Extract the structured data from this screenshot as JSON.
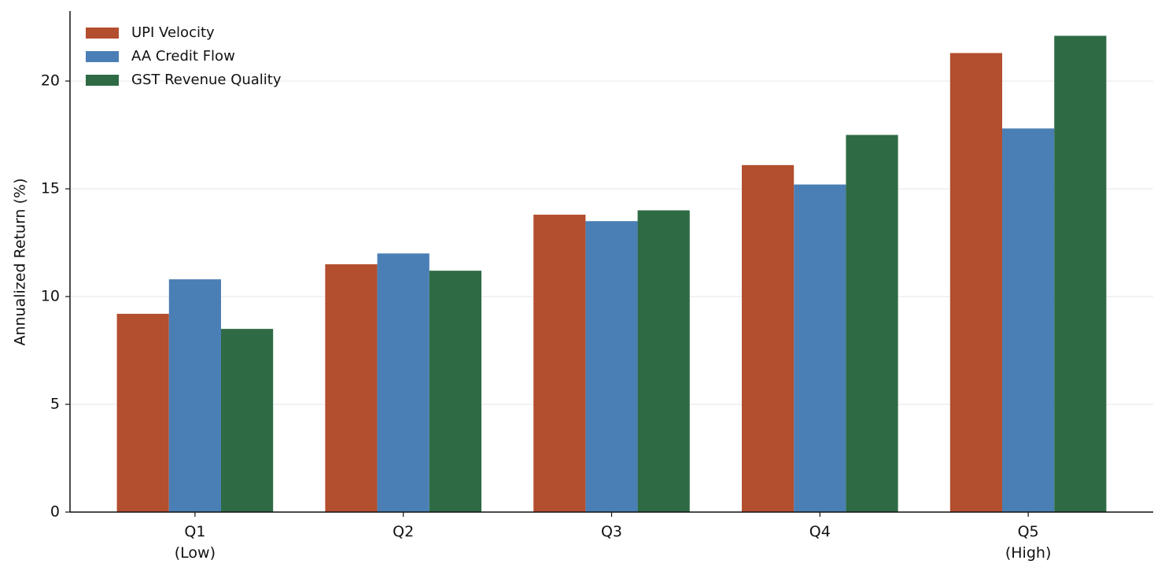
{
  "chart_data": {
    "type": "bar",
    "ylabel": "Annualized Return (%)",
    "categories": [
      "Q1\n(Low)",
      "Q2",
      "Q3",
      "Q4",
      "Q5\n(High)"
    ],
    "series": [
      {
        "name": "UPI Velocity",
        "color": "#b34e2e",
        "values": [
          9.2,
          11.5,
          13.8,
          16.1,
          21.3
        ]
      },
      {
        "name": "AA Credit Flow",
        "color": "#4a7fb5",
        "values": [
          10.8,
          12.0,
          13.5,
          15.2,
          17.8
        ]
      },
      {
        "name": "GST Revenue Quality",
        "color": "#2e6b45",
        "values": [
          8.5,
          11.2,
          14.0,
          17.5,
          22.1
        ]
      }
    ],
    "ylim": [
      0,
      23.25
    ],
    "yticks": [
      0,
      5,
      10,
      15,
      20
    ],
    "grid": true,
    "legend": "upper left"
  }
}
